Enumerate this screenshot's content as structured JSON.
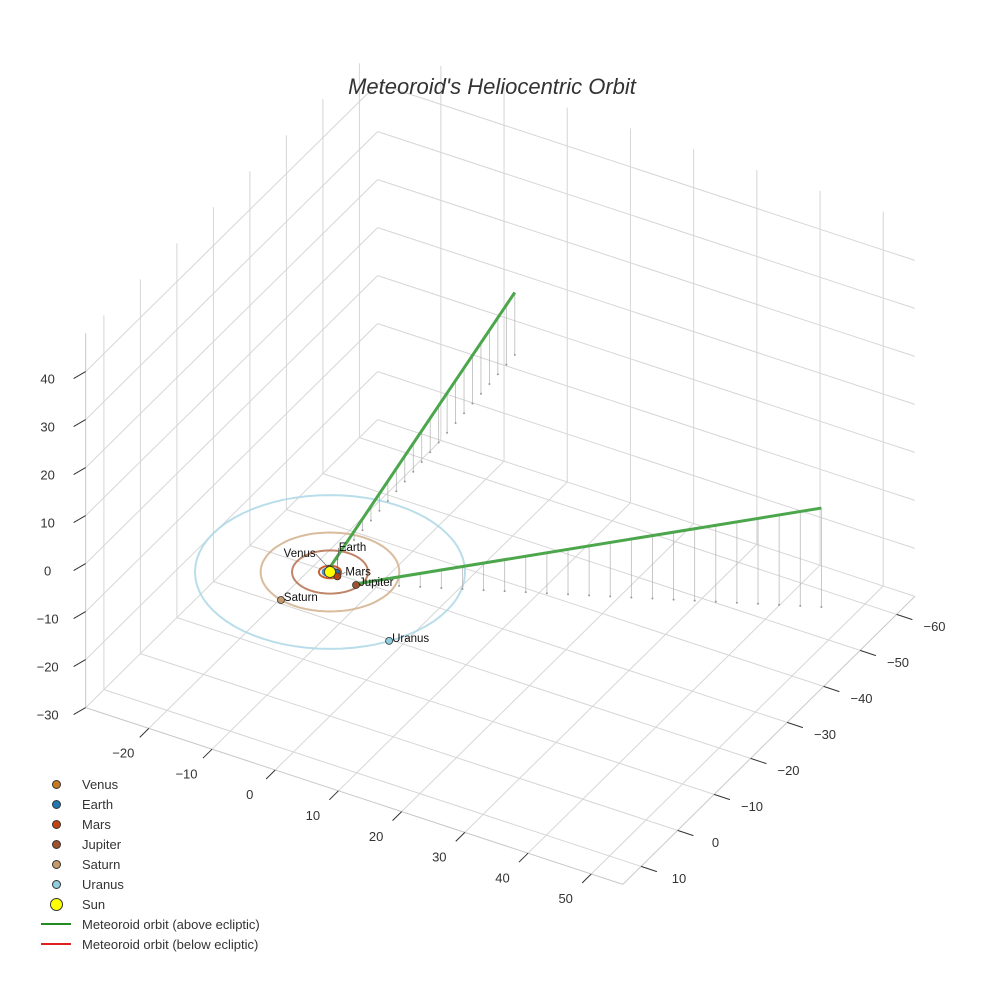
{
  "chart_data": {
    "type": "scatter3d",
    "title": "Meteoroid's Heliocentric Orbit",
    "axes": {
      "x": {
        "range": [
          -30,
          55
        ],
        "ticks": [
          -20,
          -10,
          0,
          10,
          20,
          30,
          40,
          50
        ]
      },
      "y": {
        "range": [
          -65,
          15
        ],
        "ticks": [
          -60,
          -50,
          -40,
          -30,
          -20,
          -10,
          0,
          10
        ]
      },
      "z": {
        "range": [
          -30,
          48
        ],
        "ticks": [
          -30,
          -20,
          -10,
          0,
          10,
          20,
          30,
          40
        ]
      }
    },
    "orbits": [
      {
        "name": "Venus",
        "radius": 0.72,
        "color": "#c8781e"
      },
      {
        "name": "Earth",
        "radius": 1.0,
        "color": "#1f77b4"
      },
      {
        "name": "Mars",
        "radius": 1.52,
        "color": "#c1440e"
      },
      {
        "name": "Jupiter",
        "radius": 5.2,
        "color": "#b5704f"
      },
      {
        "name": "Saturn",
        "radius": 9.5,
        "color": "#d2b08c"
      },
      {
        "name": "Uranus",
        "radius": 18.5,
        "color": "#add8e6"
      }
    ],
    "planets": [
      {
        "name": "Venus",
        "x": -0.4,
        "y": -0.6,
        "z": 0,
        "color": "#c8781e"
      },
      {
        "name": "Earth",
        "x": 0.9,
        "y": -0.3,
        "z": 0,
        "color": "#1f77b4"
      },
      {
        "name": "Mars",
        "x": 1.4,
        "y": 0.4,
        "z": 0,
        "color": "#c1440e"
      },
      {
        "name": "Jupiter",
        "x": 4.65,
        "y": 0.93,
        "z": 0,
        "color": "#a0522d"
      },
      {
        "name": "Saturn",
        "x": -2.45,
        "y": 9.2,
        "z": 0,
        "color": "#c49a6c"
      },
      {
        "name": "Uranus",
        "x": 15.3,
        "y": 10.3,
        "z": 0,
        "color": "#8ecfe0"
      }
    ],
    "sun": {
      "name": "Sun",
      "x": 0,
      "y": 0,
      "z": 0,
      "color": "#ffff00"
    },
    "meteoroid": {
      "color_above": "#4ca64c",
      "color_below": "#e02020",
      "branches": [
        {
          "start": [
            -0.5,
            -0.5,
            0
          ],
          "end": [
            -4.2,
            -57.9,
            13
          ]
        },
        {
          "start": [
            4.6,
            0.6,
            0
          ],
          "end": [
            62.5,
            -26.4,
            20.6
          ]
        }
      ]
    },
    "legend": {
      "placement": "bottom-left",
      "entries": [
        {
          "label": "Venus",
          "type": "marker",
          "color": "#c8781e"
        },
        {
          "label": "Earth",
          "type": "marker",
          "color": "#1f77b4"
        },
        {
          "label": "Mars",
          "type": "marker",
          "color": "#c1440e"
        },
        {
          "label": "Jupiter",
          "type": "marker",
          "color": "#a0522d"
        },
        {
          "label": "Saturn",
          "type": "marker",
          "color": "#c49a6c"
        },
        {
          "label": "Uranus",
          "type": "marker",
          "color": "#8ecfe0"
        },
        {
          "label": "Sun",
          "type": "sun",
          "color": "#ffff00"
        },
        {
          "label": "Meteoroid orbit (above ecliptic)",
          "type": "line",
          "color": "#228b22"
        },
        {
          "label": "Meteoroid orbit (below ecliptic)",
          "type": "line",
          "color": "#e02020"
        }
      ]
    }
  }
}
